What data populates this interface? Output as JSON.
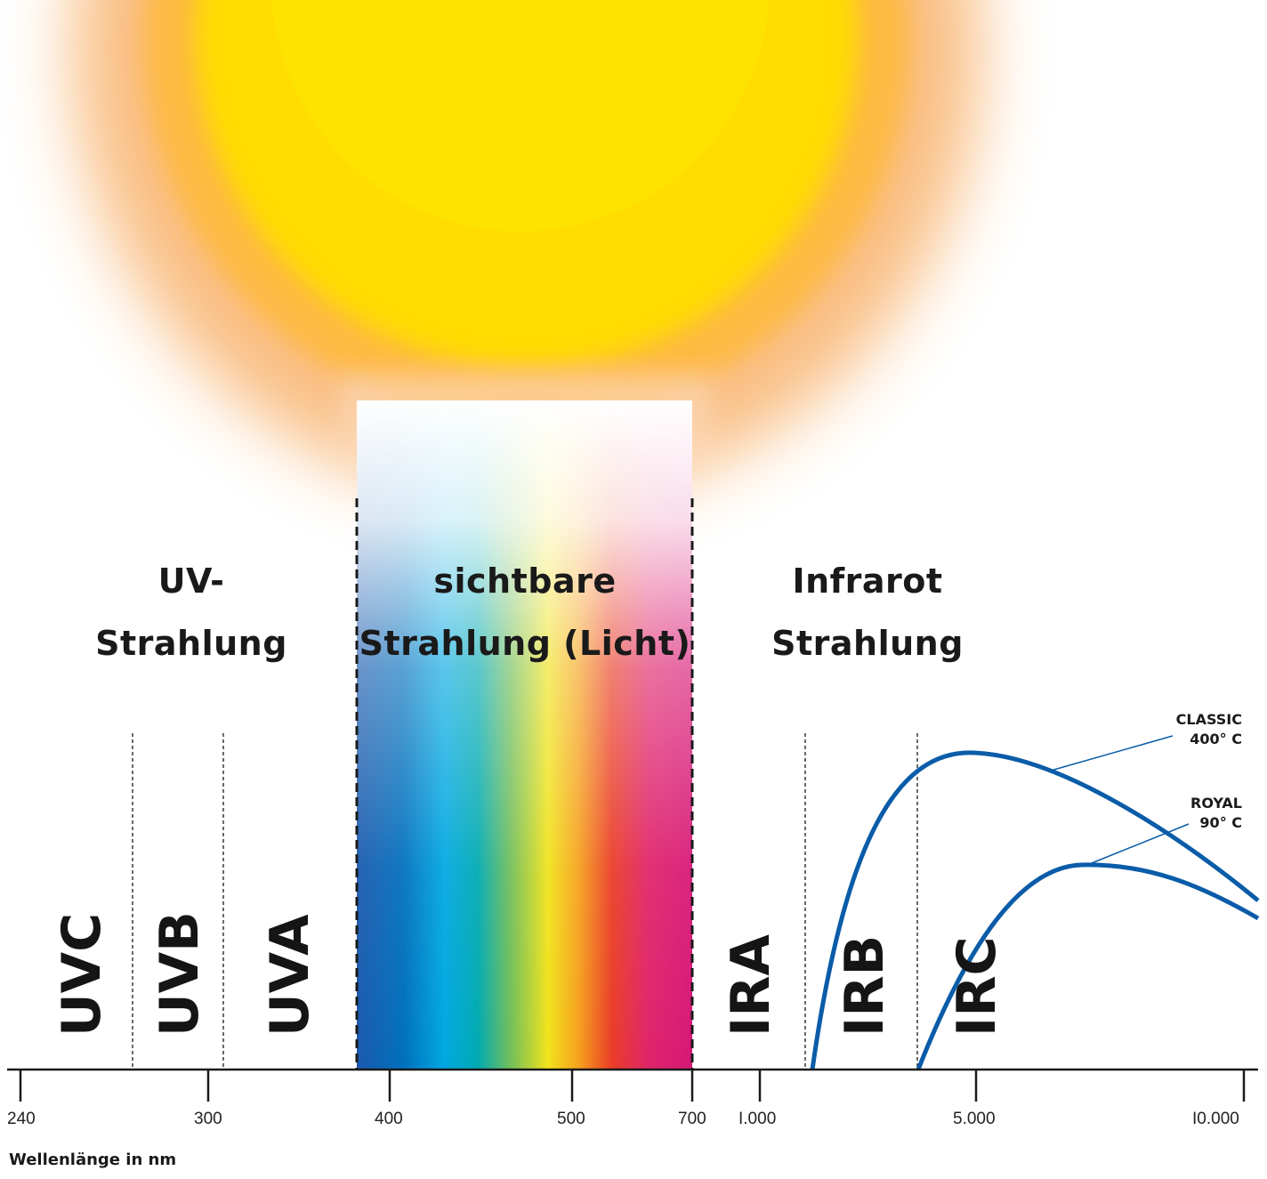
{
  "regions": {
    "uv": {
      "line1": "UV-",
      "line2": "Strahlung"
    },
    "visible": {
      "line1": "sichtbare",
      "line2": "Strahlung (Licht)"
    },
    "infrared": {
      "line1": "Infrarot",
      "line2": "Strahlung"
    }
  },
  "bands": {
    "uvc": "UVC",
    "uvb": "UVB",
    "uva": "UVA",
    "ira": "IRA",
    "irb": "IRB",
    "irc": "IRC"
  },
  "axis": {
    "title": "Wellenlänge in nm",
    "ticks": [
      "240",
      "300",
      "400",
      "500",
      "700",
      "I.000",
      "5.000",
      "I0.000"
    ]
  },
  "curves": {
    "classic": {
      "name": "CLASSIC",
      "temp": "400° C"
    },
    "royal": {
      "name": "ROYAL",
      "temp": "90° C"
    }
  },
  "colors": {
    "curve": "#0b5ca8",
    "sun_core": "#ffdd00",
    "sun_glow": "#f7a350",
    "text": "#1a1a1a"
  }
}
